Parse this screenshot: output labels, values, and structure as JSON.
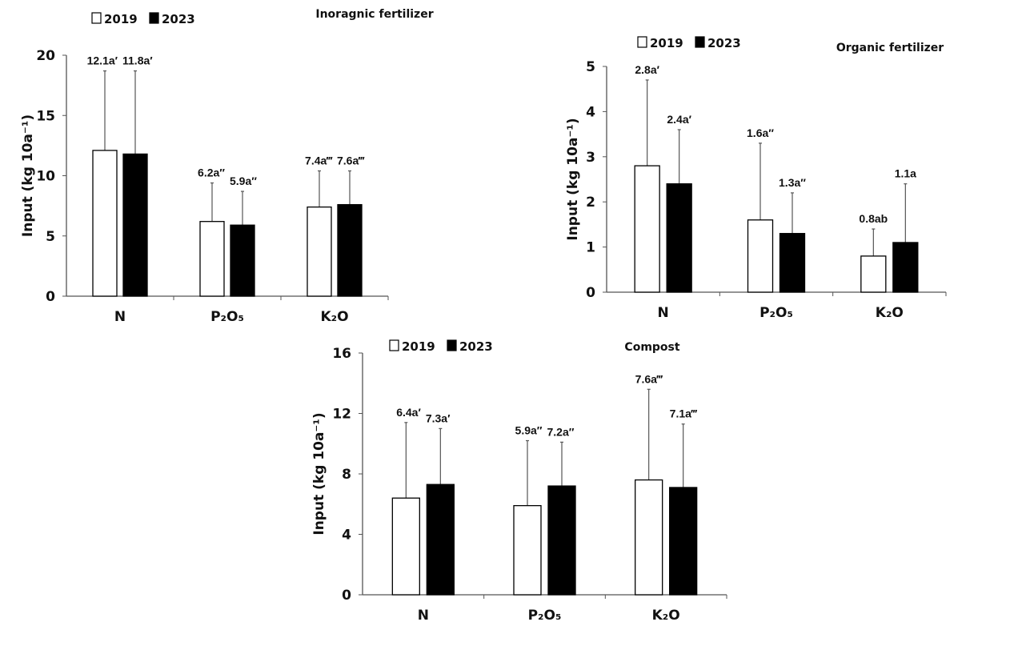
{
  "chart_data": [
    {
      "type": "bar",
      "title": "Inoragnic fertilizer",
      "ylabel": "Input (kg 10a⁻¹)",
      "xlabel": "",
      "ylim": [
        0,
        20
      ],
      "yticks": [
        "0",
        "5",
        "10",
        "15",
        "20"
      ],
      "categories": [
        "N",
        "P₂O₅",
        "K₂O"
      ],
      "legend": "top-left",
      "series": [
        {
          "name": "2019",
          "color": "#ffffff",
          "values": [
            12.1,
            6.2,
            7.4
          ],
          "error_upper": [
            18.7,
            9.4,
            10.4
          ],
          "labels": [
            "12.1a′",
            "6.2a″",
            "7.4a‴"
          ]
        },
        {
          "name": "2023",
          "color": "#000000",
          "values": [
            11.8,
            5.9,
            7.6
          ],
          "error_upper": [
            18.7,
            8.7,
            10.4
          ],
          "labels": [
            "11.8a′",
            "5.9a″",
            "7.6a‴"
          ]
        }
      ]
    },
    {
      "type": "bar",
      "title": "Organic fertilizer",
      "ylabel": "Input (kg 10a⁻¹)",
      "xlabel": "",
      "ylim": [
        0,
        5
      ],
      "yticks": [
        "0",
        "1",
        "2",
        "3",
        "4",
        "5"
      ],
      "categories": [
        "N",
        "P₂O₅",
        "K₂O"
      ],
      "legend": "top-left",
      "series": [
        {
          "name": "2019",
          "color": "#ffffff",
          "values": [
            2.8,
            1.6,
            0.8
          ],
          "error_upper": [
            4.7,
            3.3,
            1.4
          ],
          "labels": [
            "2.8a′",
            "1.6a″",
            "0.8ab"
          ]
        },
        {
          "name": "2023",
          "color": "#000000",
          "values": [
            2.4,
            1.3,
            1.1
          ],
          "error_upper": [
            3.6,
            2.2,
            2.4
          ],
          "labels": [
            "2.4a′",
            "1.3a″",
            "1.1a"
          ]
        }
      ]
    },
    {
      "type": "bar",
      "title": "Compost",
      "ylabel": "Input (kg 10a⁻¹)",
      "xlabel": "",
      "ylim": [
        0,
        16
      ],
      "yticks": [
        "0",
        "4",
        "8",
        "12",
        "16"
      ],
      "categories": [
        "N",
        "P₂O₅",
        "K₂O"
      ],
      "legend": "top-left",
      "series": [
        {
          "name": "2019",
          "color": "#ffffff",
          "values": [
            6.4,
            5.9,
            7.6
          ],
          "error_upper": [
            11.4,
            10.2,
            13.6
          ],
          "labels": [
            "6.4a′",
            "5.9a″",
            "7.6a‴"
          ]
        },
        {
          "name": "2023",
          "color": "#000000",
          "values": [
            7.3,
            7.2,
            7.1
          ],
          "error_upper": [
            11.0,
            10.1,
            11.3
          ],
          "labels": [
            "7.3a′",
            "7.2a″",
            "7.1a‴"
          ]
        }
      ]
    }
  ]
}
